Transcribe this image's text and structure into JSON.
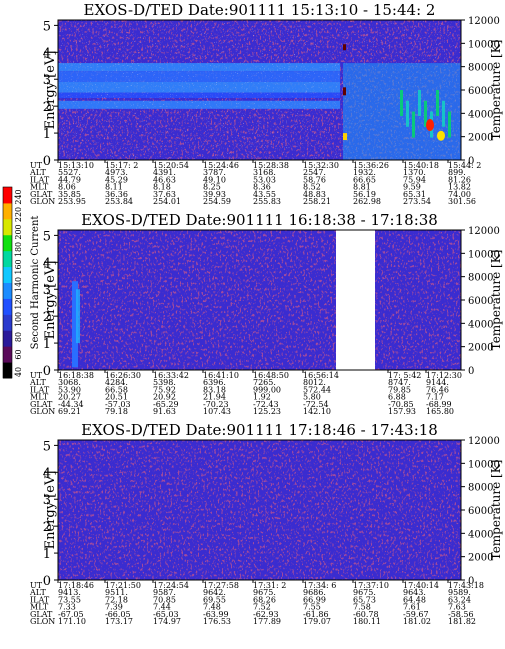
{
  "chart_data": {
    "type": "heatmap",
    "colorbar": {
      "title": "Second Harmonic Current",
      "ticks": [
        "40",
        "60",
        "80",
        "100",
        "120",
        "140",
        "160",
        "180",
        "200",
        "220",
        "240"
      ],
      "colors": [
        "#000000",
        "#5a0a5a",
        "#2a1a9a",
        "#2a3acd",
        "#2050ff",
        "#1c8cff",
        "#10c8ff",
        "#00d8a0",
        "#10e010",
        "#d8e800",
        "#ffb000",
        "#ff0000"
      ]
    },
    "panels": [
      {
        "title": "EXOS-D/TED   Date:901111  15:13:10 - 15:44: 2",
        "ylabel": "Energy [eV]",
        "y2label": "Temperature [K]",
        "yticks": [
          "0",
          "1",
          "2",
          "3",
          "4",
          "5"
        ],
        "y2ticks": [
          "0",
          "2000",
          "4000",
          "6000",
          "8000",
          "10000",
          "12000"
        ],
        "ylim": [
          0,
          5.2
        ],
        "y2lim": [
          0,
          12000
        ],
        "gap": [],
        "orbit_table": {
          "row_labels": [
            "UT",
            "ALT",
            "ILAT",
            "MLT",
            "GLAT",
            "GLON"
          ],
          "columns": [
            [
              "15:13:10",
              "5527.",
              "44.79",
              "8.06",
              "35.85",
              "253.95"
            ],
            [
              "15:17: 2",
              "4973.",
              "45.29",
              "8.11",
              "36.36",
              "253.84"
            ],
            [
              "15:20:54",
              "4391.",
              "46.63",
              "8.18",
              "37.63",
              "254.01"
            ],
            [
              "15:24:46",
              "3787.",
              "49.10",
              "8.25",
              "39.93",
              "254.59"
            ],
            [
              "15:28:38",
              "3168.",
              "53.03",
              "8.36",
              "43.55",
              "255.83"
            ],
            [
              "15:32:30",
              "2547.",
              "58.76",
              "8.52",
              "48.83",
              "258.21"
            ],
            [
              "15:36:26",
              "1932.",
              "66.65",
              "8.81",
              "56.19",
              "262.98"
            ],
            [
              "15:40:18",
              "1370.",
              "75.94",
              "9.59",
              "65.31",
              "273.54"
            ],
            [
              "15:44: 2",
              "899.",
              "81.26",
              "13.82",
              "74.00",
              "301.56"
            ]
          ]
        }
      },
      {
        "title": "EXOS-D/TED   Date:901111  16:18:38 - 17:18:38",
        "ylabel": "Energy [eV]",
        "y2label": "Temperature [K]",
        "yticks": [
          "0",
          "1",
          "2",
          "3",
          "4",
          "5"
        ],
        "y2ticks": [
          "0",
          "2000",
          "4000",
          "6000",
          "8000",
          "10000",
          "12000"
        ],
        "ylim": [
          0,
          5.2
        ],
        "y2lim": [
          0,
          12000
        ],
        "gap": [
          "17: 5:42",
          "17:12:30"
        ],
        "orbit_table": {
          "row_labels": [
            "UT",
            "ALT",
            "ILAT",
            "MLT",
            "GLAT",
            "GLON"
          ],
          "columns": [
            [
              "16:18:38",
              "3068.",
              "53.90",
              "20.27",
              "-44.34",
              "69.21"
            ],
            [
              "16:26:30",
              "4284.",
              "66.58",
              "20.51",
              "-57.03",
              "79.18"
            ],
            [
              "16:33:42",
              "5398.",
              "75.92",
              "20.92",
              "-65.29",
              "91.63"
            ],
            [
              "16:41:10",
              "6396.",
              "83.18",
              "21.94",
              "-70.23",
              "107.43"
            ],
            [
              "16:48:50",
              "7265.",
              "999.00",
              "1.92",
              "-72.43",
              "125.23"
            ],
            [
              "16:56:14",
              "8012.",
              "572.44",
              "5.80",
              "-72.54",
              "142.10"
            ],
            [
              "17: 5:42",
              "8747.",
              "79.85",
              "6.88",
              "-70.85",
              "157.93"
            ],
            [
              "17:12:30",
              "9144.",
              "76.46",
              "7.17",
              "-68.99",
              "165.80"
            ]
          ]
        }
      },
      {
        "title": "EXOS-D/TED   Date:901111  17:18:46 - 17:43:18",
        "ylabel": "Energy [eV]",
        "y2label": "Temperature [K]",
        "yticks": [
          "0",
          "1",
          "2",
          "3",
          "4",
          "5"
        ],
        "y2ticks": [
          "0",
          "2000",
          "4000",
          "6000",
          "8000",
          "10000",
          "12000"
        ],
        "ylim": [
          0,
          5.2
        ],
        "y2lim": [
          0,
          12000
        ],
        "gap": [],
        "orbit_table": {
          "row_labels": [
            "UT",
            "ALT",
            "ILAT",
            "MLT",
            "GLAT",
            "GLON"
          ],
          "columns": [
            [
              "17:18:46",
              "9413.",
              "73.55",
              "7.33",
              "-67.05",
              "171.10"
            ],
            [
              "17:21:50",
              "9511.",
              "72.18",
              "7.39",
              "-66.05",
              "173.17"
            ],
            [
              "17:24:54",
              "9587.",
              "70.85",
              "7.44",
              "-65.03",
              "174.97"
            ],
            [
              "17:27:58",
              "9642.",
              "69.55",
              "7.48",
              "-63.99",
              "176.53"
            ],
            [
              "17:31: 2",
              "9675.",
              "68.26",
              "7.52",
              "-62.93",
              "177.89"
            ],
            [
              "17:34: 6",
              "9686.",
              "66.99",
              "7.55",
              "-61.86",
              "179.07"
            ],
            [
              "17:37:10",
              "9675.",
              "65.73",
              "7.58",
              "-60.78",
              "180.11"
            ],
            [
              "17:40:14",
              "9643.",
              "64.48",
              "7.61",
              "-59.67",
              "181.02"
            ],
            [
              "17:43:18",
              "9589.",
              "63.24",
              "7.63",
              "-58.56",
              "181.82"
            ]
          ]
        }
      }
    ]
  }
}
